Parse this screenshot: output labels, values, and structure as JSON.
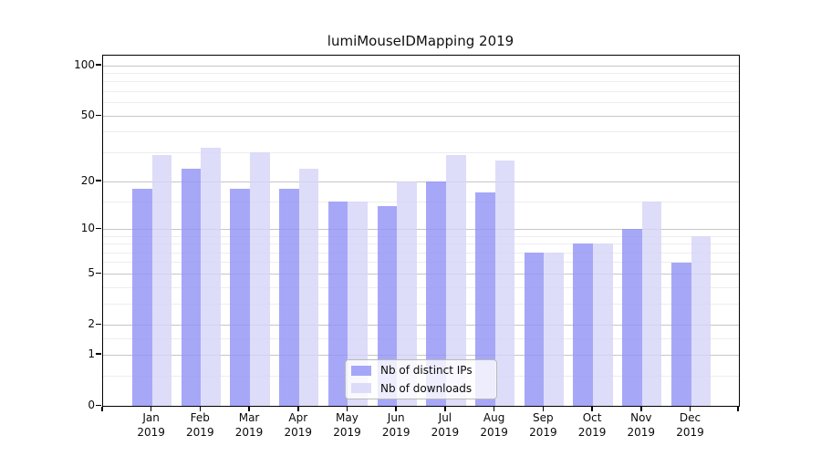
{
  "title": "lumiMouseIDMapping 2019",
  "chart_data": {
    "type": "bar",
    "title": "lumiMouseIDMapping 2019",
    "categories": [
      "Jan",
      "Feb",
      "Mar",
      "Apr",
      "May",
      "Jun",
      "Jul",
      "Aug",
      "Sep",
      "Oct",
      "Nov",
      "Dec"
    ],
    "category_year": "2019",
    "series": [
      {
        "name": "Nb of distinct IPs",
        "color": "rgba(148,148,246,0.82)",
        "values": [
          18,
          24,
          18,
          18,
          15,
          14,
          20,
          17,
          7,
          8,
          10,
          6
        ]
      },
      {
        "name": "Nb of downloads",
        "color": "rgba(213,213,247,0.80)",
        "values": [
          29,
          32,
          30,
          24,
          15,
          20,
          29,
          27,
          7,
          8,
          15,
          9
        ]
      }
    ],
    "y_axis": {
      "scale": "log10(value+1)",
      "major_ticks": [
        0,
        1,
        2,
        5,
        10,
        20,
        50,
        100
      ],
      "minor_gridlines": [
        0.5,
        1.5,
        3,
        4,
        6,
        7,
        8,
        9,
        15,
        30,
        40,
        60,
        70,
        80,
        90
      ],
      "range_max": 115
    },
    "x_axis": {
      "label_line2": "2019"
    },
    "legend": {
      "position": "lower-center"
    },
    "grid": true,
    "colors": {
      "bar_dark": "rgba(148,148,246,0.82)",
      "bar_light": "rgba(213,213,247,0.80)",
      "grid_major": "#c6c6c6",
      "grid_minor": "#ededed",
      "spine": "#000000"
    }
  }
}
